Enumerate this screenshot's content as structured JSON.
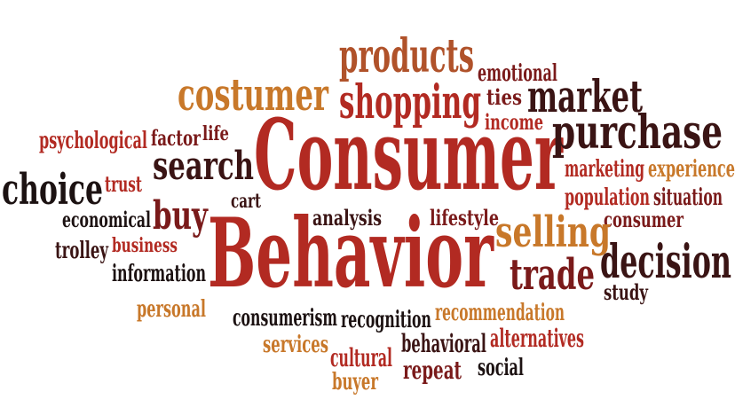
{
  "palette": {
    "dark_red": "#7a1a1a",
    "red": "#b22a22",
    "brown": "#3a1414",
    "orange": "#c8782a",
    "near_black": "#1c1212"
  },
  "words": [
    {
      "id": "consumer-big",
      "text": "Consumer",
      "color": "#b22a22"
    },
    {
      "id": "behavior-big",
      "text": "Behavior",
      "color": "#b22a22"
    },
    {
      "id": "products",
      "text": "products",
      "color": "#b0522a"
    },
    {
      "id": "costumer",
      "text": "costumer",
      "color": "#c8782a"
    },
    {
      "id": "shopping",
      "text": "shopping",
      "color": "#b22a22"
    },
    {
      "id": "emotional",
      "text": "emotional",
      "color": "#7a1a1a"
    },
    {
      "id": "ties",
      "text": "ties",
      "color": "#7a1a1a"
    },
    {
      "id": "market",
      "text": "market",
      "color": "#3a1414"
    },
    {
      "id": "income",
      "text": "income",
      "color": "#b22a22"
    },
    {
      "id": "purchase",
      "text": "purchase",
      "color": "#3a1414"
    },
    {
      "id": "psychological",
      "text": "psychological",
      "color": "#b22a22"
    },
    {
      "id": "factor",
      "text": "factor",
      "color": "#7a1a1a"
    },
    {
      "id": "life",
      "text": "life",
      "color": "#7a1a1a"
    },
    {
      "id": "search",
      "text": "search",
      "color": "#3a1414"
    },
    {
      "id": "choice",
      "text": "choice",
      "color": "#1c1212"
    },
    {
      "id": "trust",
      "text": "trust",
      "color": "#b22a22"
    },
    {
      "id": "cart",
      "text": "cart",
      "color": "#3a1414"
    },
    {
      "id": "economical",
      "text": "economical",
      "color": "#1c1212"
    },
    {
      "id": "buy",
      "text": "buy",
      "color": "#7a1a1a"
    },
    {
      "id": "analysis",
      "text": "analysis",
      "color": "#3a1414"
    },
    {
      "id": "lifestyle",
      "text": "lifestyle",
      "color": "#7a1a1a"
    },
    {
      "id": "marketing",
      "text": "marketing",
      "color": "#b22a22"
    },
    {
      "id": "experience",
      "text": "experience",
      "color": "#c8782a"
    },
    {
      "id": "population",
      "text": "population",
      "color": "#b22a22"
    },
    {
      "id": "situation",
      "text": "situation",
      "color": "#7a1a1a"
    },
    {
      "id": "consumer-small",
      "text": "consumer",
      "color": "#7a1a1a"
    },
    {
      "id": "selling",
      "text": "selling",
      "color": "#c8782a"
    },
    {
      "id": "trolley",
      "text": "trolley",
      "color": "#3a1414"
    },
    {
      "id": "business",
      "text": "business",
      "color": "#b22a22"
    },
    {
      "id": "information",
      "text": "information",
      "color": "#1c1212"
    },
    {
      "id": "decision",
      "text": "decision",
      "color": "#3a1414"
    },
    {
      "id": "trade",
      "text": "trade",
      "color": "#7a1a1a"
    },
    {
      "id": "study",
      "text": "study",
      "color": "#3a1414"
    },
    {
      "id": "personal",
      "text": "personal",
      "color": "#c8782a"
    },
    {
      "id": "consumerism",
      "text": "consumerism",
      "color": "#1c1212"
    },
    {
      "id": "recognition",
      "text": "recognition",
      "color": "#1c1212"
    },
    {
      "id": "recommendation",
      "text": "recommendation",
      "color": "#c8782a"
    },
    {
      "id": "services",
      "text": "services",
      "color": "#c8782a"
    },
    {
      "id": "behavioral",
      "text": "behavioral",
      "color": "#3a1414"
    },
    {
      "id": "alternatives",
      "text": "alternatives",
      "color": "#b22a22"
    },
    {
      "id": "cultural",
      "text": "cultural",
      "color": "#b22a22"
    },
    {
      "id": "repeat",
      "text": "repeat",
      "color": "#7a1a1a"
    },
    {
      "id": "social",
      "text": "social",
      "color": "#1c1212"
    },
    {
      "id": "buyer",
      "text": "buyer",
      "color": "#c8782a"
    }
  ]
}
